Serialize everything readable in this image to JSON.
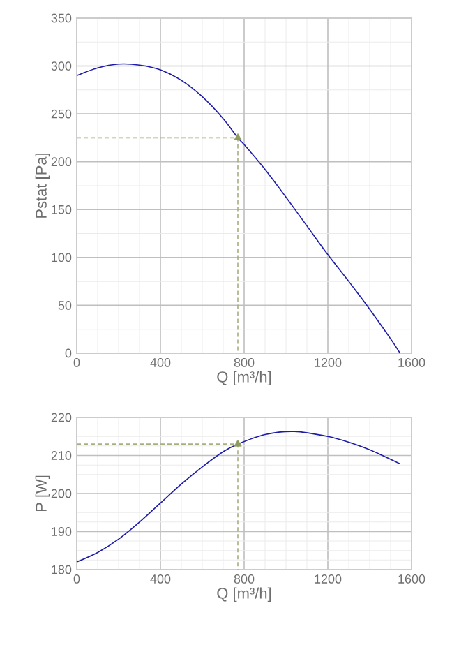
{
  "chart_data": [
    {
      "type": "line",
      "xlabel": "Q [m³/h]",
      "ylabel": "Pstat [Pa]",
      "xlim": [
        0,
        1600
      ],
      "xticks": [
        0,
        400,
        800,
        1200,
        1600
      ],
      "ylim": [
        0,
        350
      ],
      "yticks": [
        0,
        50,
        100,
        150,
        200,
        250,
        300,
        350
      ],
      "grid": true,
      "series": [
        {
          "type": "line",
          "color": "#1c1ca8",
          "x": [
            0,
            100,
            200,
            300,
            400,
            500,
            600,
            700,
            770,
            800,
            900,
            1000,
            1100,
            1200,
            1300,
            1400,
            1500,
            1545
          ],
          "values": [
            290,
            298,
            302,
            301,
            296,
            285,
            268,
            245,
            225,
            218,
            192,
            163,
            133,
            103,
            75,
            46,
            15,
            0
          ]
        },
        {
          "type": "line",
          "color": "#a8ae80",
          "line_style": "dashed",
          "x": [
            0,
            770,
            770
          ],
          "values": [
            225,
            225,
            0
          ]
        },
        {
          "type": "scatter",
          "color": "#8e9a60",
          "marker": "triangle",
          "x": [
            770
          ],
          "values": [
            225
          ]
        }
      ]
    },
    {
      "type": "line",
      "xlabel": "Q [m³/h]",
      "ylabel": "P [W]",
      "xlim": [
        0,
        1600
      ],
      "xticks": [
        0,
        400,
        800,
        1200,
        1600
      ],
      "ylim": [
        180,
        220
      ],
      "yticks": [
        180,
        190,
        200,
        210,
        220
      ],
      "grid": true,
      "series": [
        {
          "type": "line",
          "color": "#1c1ca8",
          "x": [
            0,
            100,
            200,
            300,
            400,
            500,
            600,
            700,
            770,
            900,
            1040,
            1200,
            1300,
            1400,
            1545
          ],
          "values": [
            182,
            184.5,
            188,
            192.5,
            197.5,
            202.5,
            207,
            211,
            213,
            215.5,
            216.3,
            215,
            213.5,
            211.5,
            207.8
          ]
        },
        {
          "type": "line",
          "color": "#a8ae80",
          "line_style": "dashed",
          "x": [
            0,
            770,
            770
          ],
          "values": [
            213,
            213,
            180
          ]
        },
        {
          "type": "scatter",
          "color": "#8e9a60",
          "marker": "triangle",
          "x": [
            770
          ],
          "values": [
            213
          ]
        }
      ]
    }
  ]
}
